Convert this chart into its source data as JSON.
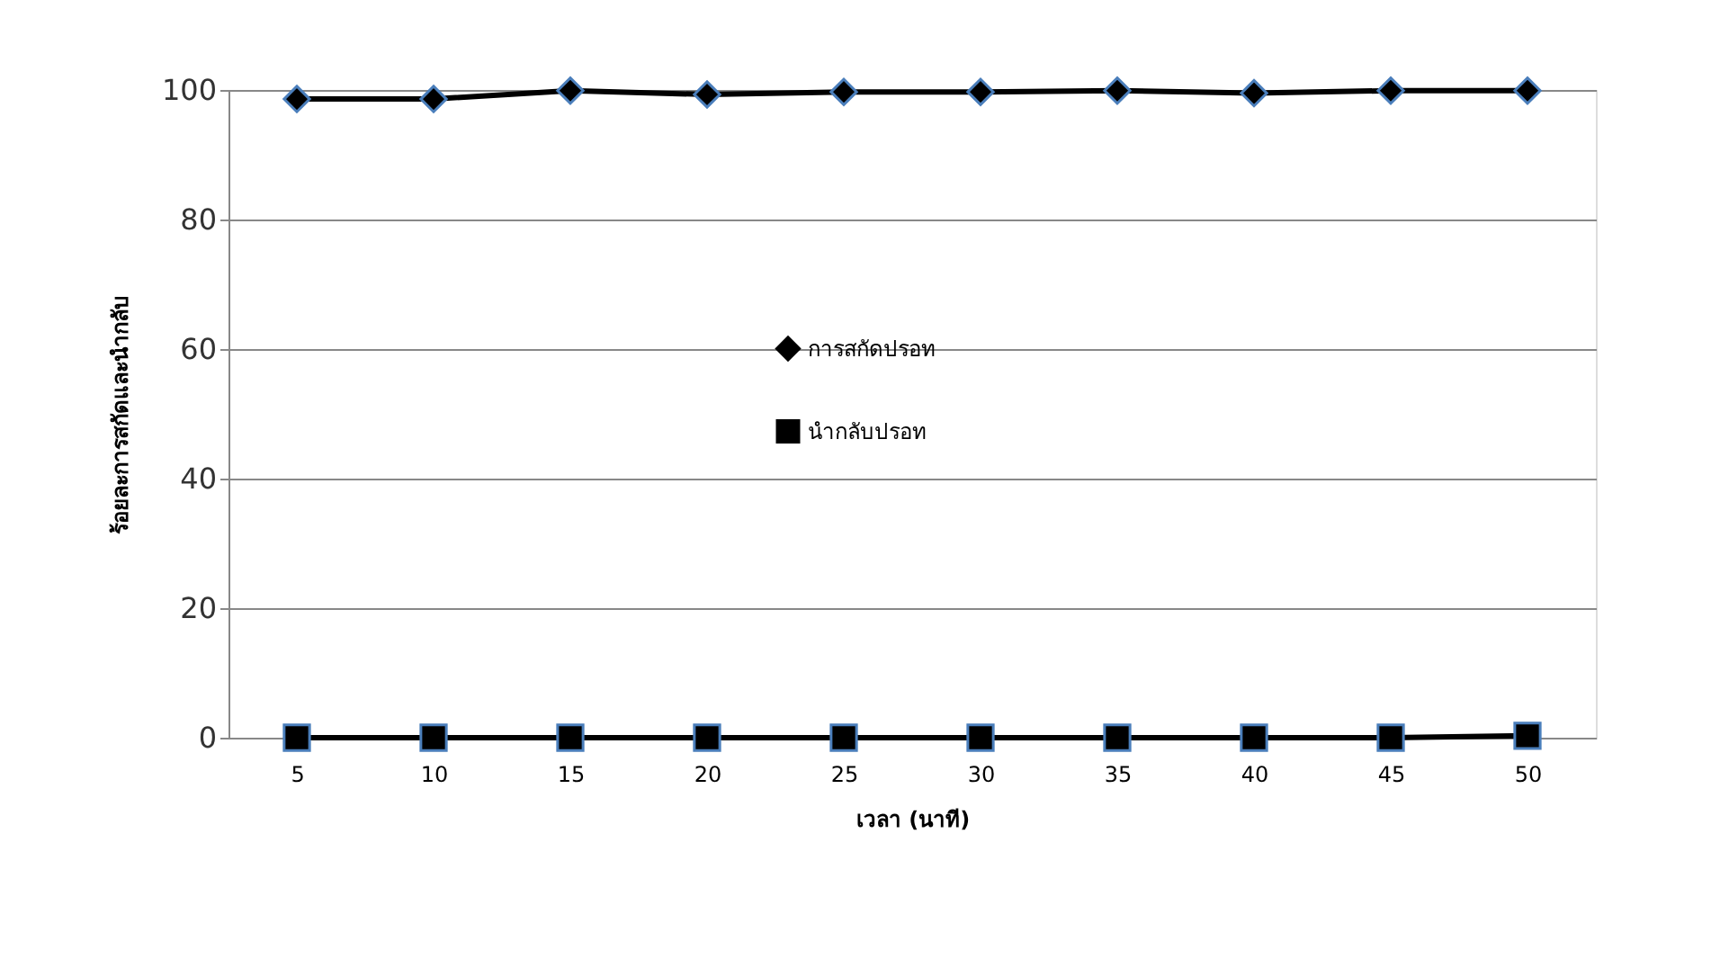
{
  "chart_data": {
    "type": "line",
    "xlabel": "เวลา (นาที)",
    "ylabel": "ร้อยละการสกัดและนำกลับ",
    "categories": [
      "5",
      "10",
      "15",
      "20",
      "25",
      "30",
      "35",
      "40",
      "45",
      "50"
    ],
    "series": [
      {
        "name": "การสกัดปรอท",
        "color": "#000000",
        "marker": "diamond",
        "values": [
          98.6,
          98.6,
          99.9,
          99.3,
          99.7,
          99.7,
          99.9,
          99.5,
          99.9,
          99.9
        ]
      },
      {
        "name": "นำกลับปรอท",
        "color": "#000000",
        "marker": "square",
        "values": [
          0,
          0,
          0,
          0,
          0,
          0,
          0,
          0,
          0,
          0.3
        ]
      }
    ],
    "ylim": [
      0,
      100
    ],
    "yticks": [
      0,
      20,
      40,
      60,
      80,
      100
    ],
    "grid": "y",
    "legend": "center",
    "line_style": "solid"
  }
}
